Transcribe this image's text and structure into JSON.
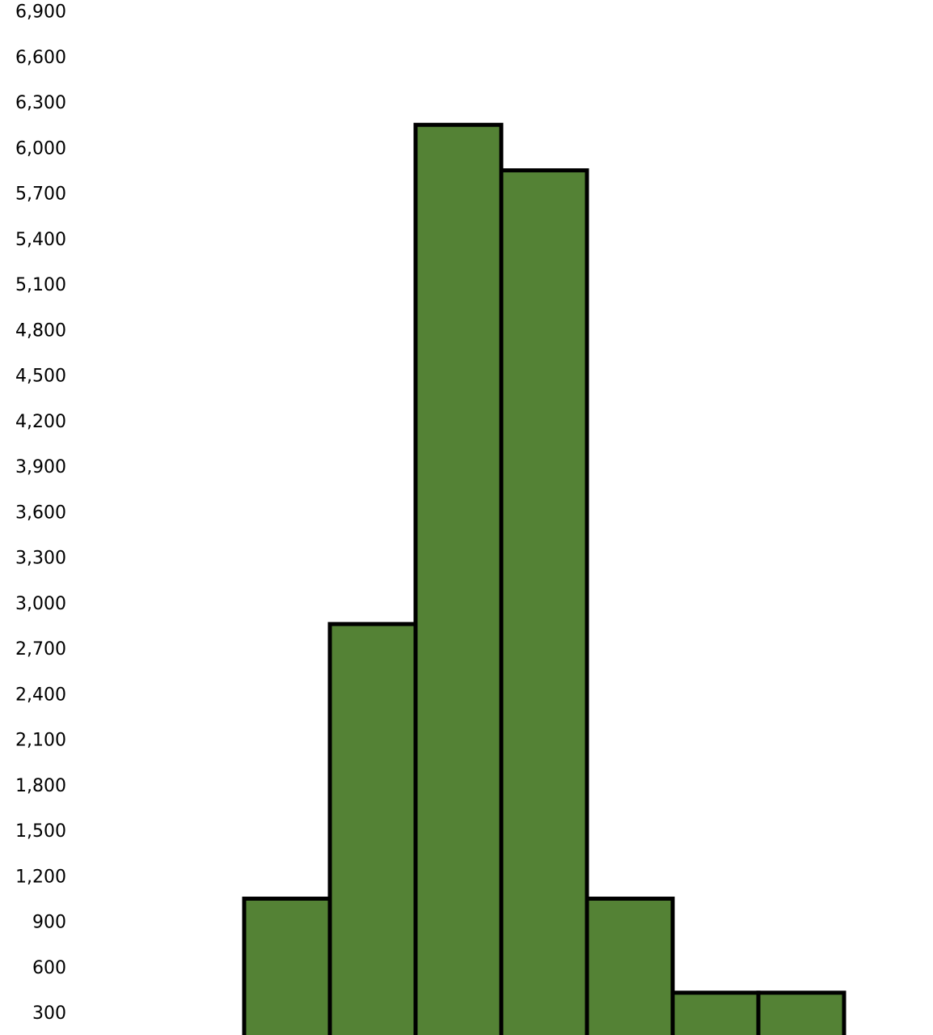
{
  "chart_data": {
    "type": "bar",
    "title": "",
    "xlabel": "",
    "ylabel": "",
    "y_ticks": [
      "300",
      "600",
      "900",
      "1,200",
      "1,500",
      "1,800",
      "2,100",
      "2,400",
      "2,700",
      "3,000",
      "3,300",
      "3,600",
      "3,900",
      "4,200",
      "4,500",
      "4,800",
      "5,100",
      "5,400",
      "5,700",
      "6,000",
      "6,300",
      "6,600",
      "6,900"
    ],
    "tick_values": [
      300,
      600,
      900,
      1200,
      1500,
      1800,
      2100,
      2400,
      2700,
      3000,
      3300,
      3600,
      3900,
      4200,
      4500,
      4800,
      5100,
      5400,
      5700,
      6000,
      6300,
      6600,
      6900
    ],
    "values": [
      1060,
      2870,
      6160,
      5860,
      1060,
      440,
      440
    ],
    "grid": false,
    "legend": "none",
    "colors": {
      "bar_fill": "#548235",
      "bar_stroke": "#000000",
      "text": "#000000",
      "background": "#ffffff"
    }
  }
}
